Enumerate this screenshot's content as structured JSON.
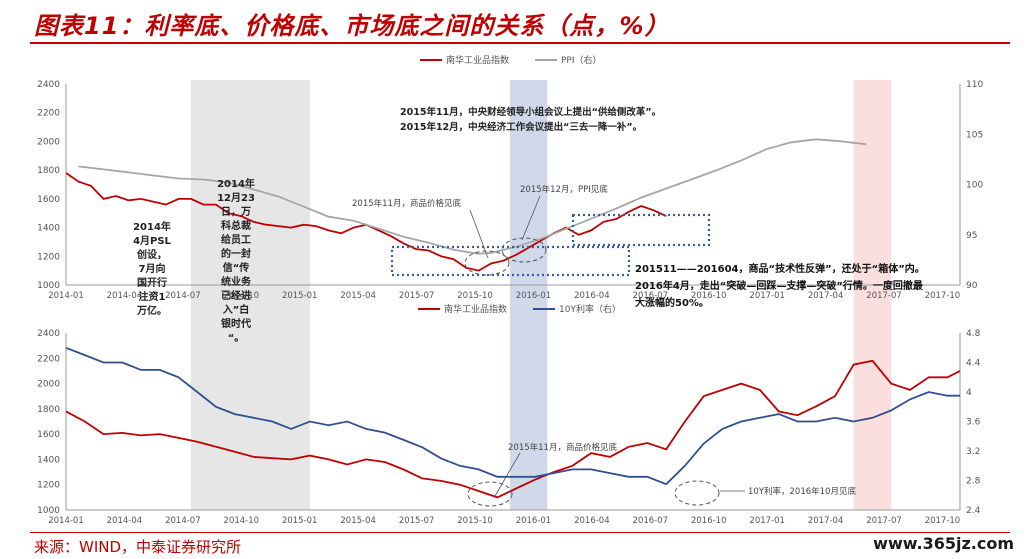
{
  "title": "图表11：利率底、价格底、市场底之间的关系（点，%）",
  "source": "来源：WIND，中泰证券研究所",
  "watermark": "www.365jz.com",
  "colors": {
    "red": "#c00000",
    "gray": "#a6a6a6",
    "blue": "#2f4f8f",
    "dotted_box": "#2e5fa8",
    "gray_band": "#e6e6e6",
    "blue_band": "#cfd9ea",
    "pink_band": "#fbdede"
  },
  "chart_data": [
    {
      "type": "line",
      "panel": "top",
      "legend": [
        "南华工业品指数",
        "PPI（右）"
      ],
      "yleft": {
        "min": 1000,
        "max": 2400,
        "ticks": [
          1000,
          1200,
          1400,
          1600,
          1800,
          2000,
          2200,
          2400
        ]
      },
      "yright": {
        "min": 90,
        "max": 110,
        "ticks": [
          90,
          95,
          100,
          105,
          110
        ]
      },
      "series": [
        {
          "name": "南华工业品指数",
          "color": "#c00000",
          "axis": "left",
          "x": [
            0,
            2,
            4,
            6,
            8,
            10,
            12,
            14,
            16,
            18,
            20,
            22,
            24,
            26,
            28,
            30,
            32,
            34,
            36,
            38,
            40,
            42,
            44,
            46,
            48,
            50,
            52,
            54,
            56,
            58,
            60,
            62,
            64,
            66,
            68,
            70,
            72,
            74,
            76,
            78,
            80,
            82,
            84,
            86,
            88,
            90,
            92,
            94,
            96
          ],
          "y": [
            1780,
            1720,
            1690,
            1600,
            1620,
            1590,
            1600,
            1580,
            1560,
            1600,
            1600,
            1560,
            1560,
            1500,
            1480,
            1440,
            1420,
            1410,
            1400,
            1420,
            1410,
            1380,
            1360,
            1400,
            1420,
            1380,
            1340,
            1290,
            1250,
            1240,
            1200,
            1180,
            1120,
            1100,
            1150,
            1170,
            1210,
            1260,
            1310,
            1360,
            1400,
            1350,
            1380,
            1440,
            1460,
            1510,
            1550,
            1520,
            1480
          ]
        },
        {
          "name": "PPI（右）",
          "color": "#a6a6a6",
          "axis": "right",
          "x": [
            2,
            6,
            10,
            14,
            18,
            22,
            26,
            30,
            34,
            38,
            42,
            46,
            50,
            54,
            58,
            62,
            64,
            66,
            68,
            72,
            76,
            80,
            84,
            88,
            92,
            96,
            100,
            104,
            108,
            112,
            116,
            120,
            124,
            128
          ],
          "y": [
            101.8,
            101.5,
            101.2,
            100.9,
            100.6,
            100.5,
            100.2,
            99.5,
            98.8,
            97.8,
            96.8,
            96.4,
            95.6,
            94.8,
            94.2,
            93.5,
            93.3,
            93.1,
            93.2,
            93.8,
            94.6,
            95.6,
            96.6,
            97.6,
            98.7,
            99.6,
            100.5,
            101.4,
            102.4,
            103.5,
            104.2,
            104.5,
            104.3,
            104.0
          ]
        }
      ],
      "annotations": [
        "2015年11月，中央财经领导小组会议上提出“供给侧改革”。",
        "2015年12月，中央经济工作会议提出“三去一降一补”。",
        "2015年11月，商品价格见底",
        "2015年12月，PPI见底",
        "201511——201604，商品“技术性反弹”，还处于“箱体”内。",
        "2016年4月，走出“突破—回踩—支撑—突破”行情。一度回撤最",
        "大涨幅的50%。"
      ],
      "left_note": [
        "2014年",
        "4月PSL",
        "创设，",
        "7月向",
        "国开行",
        "注资1",
        "万亿。"
      ],
      "mid_note": [
        "2014年",
        "12月23",
        "日，万",
        "科总裁",
        "给员工",
        "的一封",
        "信“传",
        "统业务",
        "已经进",
        "入”白",
        "银时代",
        "“。"
      ]
    },
    {
      "type": "line",
      "panel": "bottom",
      "legend": [
        "南华工业品指数",
        "10Y利率（右）"
      ],
      "yleft": {
        "min": 1000,
        "max": 2400,
        "ticks": [
          1000,
          1200,
          1400,
          1600,
          1800,
          2000,
          2200,
          2400
        ]
      },
      "yright": {
        "min": 2.4,
        "max": 4.8,
        "ticks": [
          2.4,
          2.8,
          3.2,
          3.6,
          4.0,
          4.4,
          4.8
        ]
      },
      "x_ticks": [
        "2014-01",
        "2014-04",
        "2014-07",
        "2014-10",
        "2015-01",
        "2015-04",
        "2015-07",
        "2015-10",
        "2016-01",
        "2016-04",
        "2016-07",
        "2016-10",
        "2017-01",
        "2017-04",
        "2017-07",
        "2017-10"
      ],
      "series": [
        {
          "name": "南华工业品指数",
          "color": "#c00000",
          "axis": "left",
          "x": [
            0,
            3,
            6,
            9,
            12,
            15,
            18,
            21,
            24,
            27,
            30,
            33,
            36,
            39,
            42,
            45,
            48,
            51,
            54,
            57,
            60,
            63,
            66,
            69,
            72,
            75,
            78,
            81,
            84,
            87,
            90,
            93,
            96,
            99,
            102,
            105,
            108,
            111,
            114,
            117,
            120,
            123,
            126,
            129,
            132,
            135,
            138,
            141,
            143
          ],
          "y": [
            1780,
            1700,
            1600,
            1610,
            1590,
            1600,
            1570,
            1540,
            1500,
            1460,
            1420,
            1410,
            1400,
            1430,
            1400,
            1360,
            1400,
            1380,
            1320,
            1250,
            1230,
            1200,
            1150,
            1100,
            1170,
            1240,
            1300,
            1350,
            1450,
            1420,
            1500,
            1530,
            1480,
            1700,
            1900,
            1950,
            2000,
            1950,
            1780,
            1750,
            1820,
            1900,
            2150,
            2180,
            2000,
            1950,
            2050,
            2050,
            2100
          ]
        },
        {
          "name": "10Y利率（右）",
          "color": "#2f4f8f",
          "axis": "right",
          "x": [
            0,
            3,
            6,
            9,
            12,
            15,
            18,
            21,
            24,
            27,
            30,
            33,
            36,
            39,
            42,
            45,
            48,
            51,
            54,
            57,
            60,
            63,
            66,
            69,
            72,
            75,
            78,
            81,
            84,
            87,
            90,
            93,
            96,
            99,
            102,
            105,
            108,
            111,
            114,
            117,
            120,
            123,
            126,
            129,
            132,
            135,
            138,
            141,
            143
          ],
          "y": [
            4.6,
            4.5,
            4.4,
            4.4,
            4.3,
            4.3,
            4.2,
            4.0,
            3.8,
            3.7,
            3.65,
            3.6,
            3.5,
            3.6,
            3.55,
            3.6,
            3.5,
            3.45,
            3.35,
            3.25,
            3.1,
            3.0,
            2.95,
            2.85,
            2.85,
            2.85,
            2.9,
            2.95,
            2.95,
            2.9,
            2.85,
            2.85,
            2.75,
            3.0,
            3.3,
            3.5,
            3.6,
            3.65,
            3.7,
            3.6,
            3.6,
            3.65,
            3.6,
            3.65,
            3.75,
            3.9,
            4.0,
            3.95,
            3.95
          ]
        }
      ],
      "annotations": [
        "2015年11月，商品价格见底",
        "10Y利率，2016年10月见底"
      ]
    }
  ]
}
